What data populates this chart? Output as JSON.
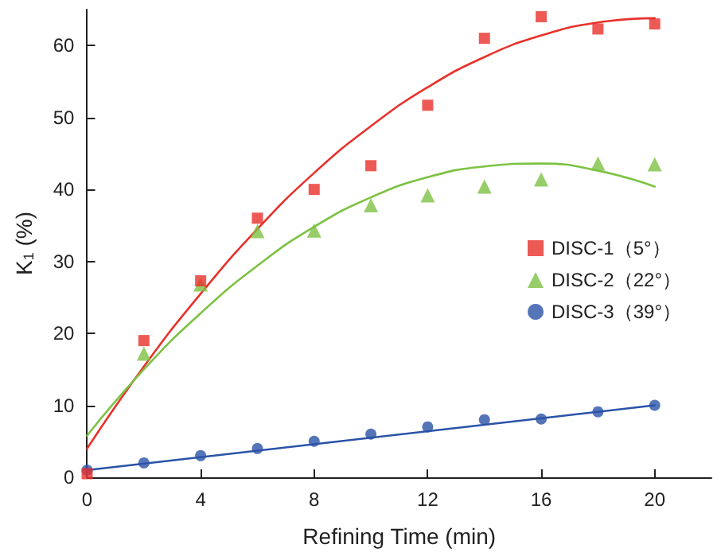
{
  "chart_data": {
    "type": "scatter",
    "xlabel": "Refining Time (min)",
    "ylabel": "K$_{1}$ (%)",
    "xlim": [
      0,
      22
    ],
    "xticks": [
      0,
      4,
      8,
      12,
      16,
      20
    ],
    "ylim": [
      0,
      65
    ],
    "yticks": [
      0,
      10,
      20,
      30,
      40,
      50,
      60
    ],
    "grid": false,
    "legend": "right",
    "series": [
      {
        "name": "DISC-1（5°）",
        "marker": "square",
        "color": "#e8312a",
        "x": [
          0,
          2,
          4,
          6,
          8,
          10,
          12,
          14,
          16,
          18,
          20
        ],
        "values": [
          0.5,
          19,
          27.3,
          36,
          40,
          43.3,
          51.7,
          61,
          64,
          62.3,
          63
        ]
      },
      {
        "name": "DISC-2（22°）",
        "marker": "triangle",
        "color": "#7dc243",
        "x": [
          2,
          4,
          6,
          8,
          10,
          12,
          14,
          16,
          18,
          20
        ],
        "values": [
          17.2,
          26.8,
          34.2,
          34.3,
          37.8,
          39.2,
          40.4,
          41.4,
          43.6,
          43.5
        ]
      },
      {
        "name": "DISC-3（39°）",
        "marker": "circle",
        "color": "#2a52a8",
        "x": [
          0,
          2,
          4,
          6,
          8,
          10,
          12,
          14,
          16,
          18,
          20
        ],
        "values": [
          1,
          2,
          3,
          4,
          5,
          6,
          7,
          8,
          8.1,
          9.1,
          10
        ]
      },
      {
        "type": "line",
        "marker": "none",
        "color": "#e8312a",
        "x": [
          0,
          2,
          4,
          6,
          8,
          10,
          12,
          14,
          16,
          18,
          20
        ],
        "values": [
          4,
          15.4,
          25.5,
          34.5,
          42.3,
          48.8,
          54.2,
          58.4,
          61.4,
          63.2,
          63.8
        ]
      },
      {
        "type": "line",
        "marker": "none",
        "color": "#7dc243",
        "x": [
          0,
          2,
          4,
          6,
          8,
          10,
          12,
          14,
          16,
          18,
          20
        ],
        "values": [
          5.8,
          15,
          22.8,
          29.4,
          34.8,
          38.9,
          41.7,
          43.2,
          43.6,
          42.6,
          40.4
        ]
      },
      {
        "type": "line",
        "marker": "none",
        "color": "#2a52a8",
        "x": [
          0,
          20
        ],
        "values": [
          1,
          10
        ]
      }
    ]
  }
}
